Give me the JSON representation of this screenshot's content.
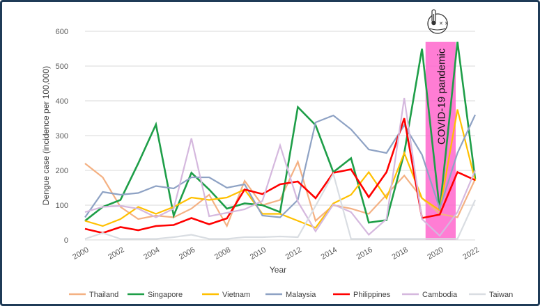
{
  "chart_data": {
    "type": "line",
    "xlabel": "Year",
    "ylabel": "Dengue case (incidence per 100,000)",
    "x": [
      2000,
      2001,
      2002,
      2003,
      2004,
      2005,
      2006,
      2007,
      2008,
      2009,
      2010,
      2011,
      2012,
      2013,
      2014,
      2015,
      2016,
      2017,
      2018,
      2019,
      2020,
      2021,
      2022
    ],
    "x_ticks": [
      "2000",
      "2002",
      "2004",
      "2006",
      "2008",
      "2010",
      "2012",
      "2014",
      "2016",
      "2018",
      "2020",
      "2022"
    ],
    "ylim": [
      0,
      600
    ],
    "y_ticks": [
      "0",
      "100",
      "200",
      "300",
      "400",
      "500",
      "600"
    ],
    "grid": "horizontal",
    "legend_position": "bottom",
    "annotation": {
      "text": "COVID-19 pandemic",
      "span": [
        2019.2,
        2020.9
      ],
      "color": "#ff66cc",
      "icon": "thermometer-virus-icon"
    },
    "series": [
      {
        "name": "Thailand",
        "color": "#f4b183",
        "values": [
          220,
          180,
          95,
          60,
          70,
          65,
          90,
          130,
          40,
          170,
          100,
          115,
          225,
          55,
          100,
          90,
          75,
          130,
          185,
          120,
          75,
          65,
          175
        ]
      },
      {
        "name": "Singapore",
        "color": "#1e9e48",
        "values": [
          55,
          95,
          115,
          220,
          332,
          70,
          193,
          145,
          90,
          105,
          100,
          80,
          382,
          330,
          195,
          235,
          50,
          57,
          250,
          550,
          85,
          570,
          175
        ]
      },
      {
        "name": "Vietnam",
        "color": "#ffc000",
        "values": [
          55,
          40,
          60,
          95,
          75,
          95,
          122,
          115,
          122,
          145,
          75,
          75,
          55,
          35,
          105,
          130,
          195,
          120,
          250,
          120,
          85,
          375,
          170
        ]
      },
      {
        "name": "Malaysia",
        "color": "#8ea2c4",
        "values": [
          65,
          138,
          130,
          135,
          155,
          148,
          180,
          180,
          150,
          160,
          70,
          65,
          115,
          338,
          358,
          318,
          260,
          250,
          330,
          245,
          90,
          250,
          360
        ]
      },
      {
        "name": "Philippines",
        "color": "#ff0000",
        "values": [
          32,
          20,
          37,
          28,
          40,
          43,
          63,
          45,
          62,
          145,
          132,
          160,
          168,
          120,
          193,
          203,
          123,
          195,
          350,
          63,
          73,
          195,
          172
        ]
      },
      {
        "name": "Cambodia",
        "color": "#d5b8de",
        "values": [
          80,
          95,
          98,
          90,
          65,
          90,
          292,
          68,
          78,
          88,
          112,
          272,
          110,
          25,
          102,
          80,
          15,
          60,
          408,
          60,
          12,
          80,
          200
        ]
      },
      {
        "name": "Taiwan",
        "color": "#d9dde2",
        "values": [
          3,
          20,
          3,
          3,
          3,
          8,
          15,
          3,
          3,
          8,
          8,
          10,
          8,
          98,
          190,
          3,
          3,
          3,
          3,
          3,
          3,
          3,
          115
        ]
      }
    ]
  }
}
